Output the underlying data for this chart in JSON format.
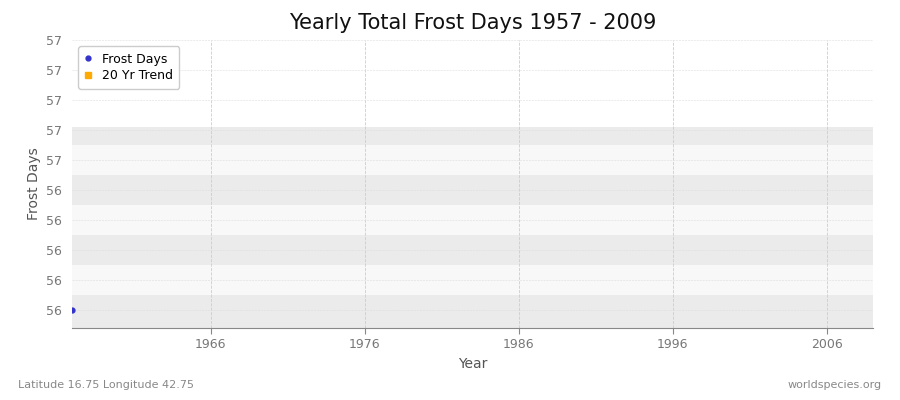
{
  "title": "Yearly Total Frost Days 1957 - 2009",
  "xlabel": "Year",
  "ylabel": "Frost Days",
  "xlim": [
    1957,
    2009
  ],
  "ylim": [
    55.88,
    57.22
  ],
  "ytick_positions": [
    56.0,
    56.2,
    56.4,
    56.6,
    56.8,
    57.0,
    57.2,
    57.4,
    57.6,
    57.8
  ],
  "ytick_labels": [
    "56",
    "56",
    "56",
    "56",
    "56",
    "57",
    "57",
    "57",
    "57",
    "57"
  ],
  "xticks": [
    1966,
    1976,
    1986,
    1996,
    2006
  ],
  "data_x": [
    1957
  ],
  "data_y": [
    56.0
  ],
  "frost_color": "#3333cc",
  "trend_color": "#ffaa00",
  "bands": [
    {
      "ymin": 55.88,
      "ymax": 56.1,
      "color": "#ebebeb"
    },
    {
      "ymin": 56.1,
      "ymax": 56.3,
      "color": "#f8f8f8"
    },
    {
      "ymin": 56.3,
      "ymax": 56.5,
      "color": "#ebebeb"
    },
    {
      "ymin": 56.5,
      "ymax": 56.7,
      "color": "#f8f8f8"
    },
    {
      "ymin": 56.7,
      "ymax": 56.9,
      "color": "#ebebeb"
    },
    {
      "ymin": 56.9,
      "ymax": 57.1,
      "color": "#f8f8f8"
    },
    {
      "ymin": 57.1,
      "ymax": 57.22,
      "color": "#ebebeb"
    }
  ],
  "subtitle_left": "Latitude 16.75 Longitude 42.75",
  "subtitle_right": "worldspecies.org",
  "title_fontsize": 15,
  "axis_label_fontsize": 10,
  "tick_fontsize": 9,
  "legend_fontsize": 9
}
